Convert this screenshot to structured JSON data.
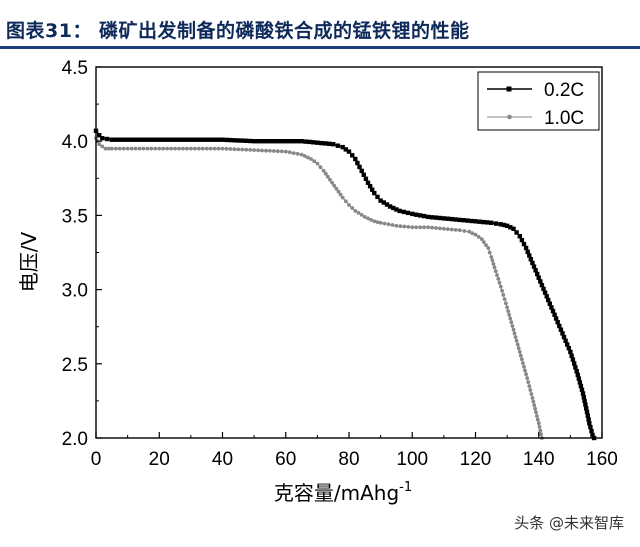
{
  "header": {
    "title": "图表31：   磷矿出发制备的磷酸铁合成的锰铁锂的性能"
  },
  "watermark": "头条 @未来智库",
  "chart_data": {
    "type": "line",
    "xlabel": "克容量/mAhg",
    "xlabel_sup": "-1",
    "ylabel": "电压/V",
    "xlim": [
      0,
      160
    ],
    "ylim": [
      2.0,
      4.5
    ],
    "xticks": [
      0,
      20,
      40,
      60,
      80,
      100,
      120,
      140,
      160
    ],
    "yticks": [
      2.0,
      2.5,
      3.0,
      3.5,
      4.0,
      4.5
    ],
    "xtick_labels": [
      "0",
      "20",
      "40",
      "60",
      "80",
      "100",
      "120",
      "140",
      "160"
    ],
    "ytick_labels": [
      "2.0",
      "2.5",
      "3.0",
      "3.5",
      "4.0",
      "4.5"
    ],
    "grid": false,
    "legend_position": "top-right",
    "series": [
      {
        "name": "0.2C",
        "color": "#000000",
        "marker": "square",
        "x": [
          0,
          1,
          2,
          5,
          10,
          20,
          30,
          40,
          50,
          60,
          65,
          70,
          75,
          78,
          80,
          82,
          84,
          86,
          88,
          90,
          93,
          96,
          100,
          105,
          110,
          115,
          120,
          125,
          128,
          130,
          132,
          134,
          136,
          138,
          140,
          142,
          144,
          146,
          148,
          150,
          152,
          154,
          155,
          156,
          157,
          157.5
        ],
        "y": [
          4.07,
          4.04,
          4.02,
          4.01,
          4.01,
          4.01,
          4.01,
          4.01,
          4.0,
          4.0,
          4.0,
          3.99,
          3.98,
          3.96,
          3.93,
          3.88,
          3.8,
          3.72,
          3.65,
          3.6,
          3.56,
          3.53,
          3.51,
          3.49,
          3.48,
          3.47,
          3.46,
          3.45,
          3.44,
          3.43,
          3.41,
          3.36,
          3.28,
          3.18,
          3.08,
          2.98,
          2.88,
          2.78,
          2.68,
          2.58,
          2.45,
          2.3,
          2.2,
          2.1,
          2.02,
          2.0
        ]
      },
      {
        "name": "1.0C",
        "color": "#888888",
        "marker": "circle",
        "x": [
          0,
          1,
          3,
          5,
          10,
          20,
          30,
          40,
          50,
          60,
          65,
          68,
          70,
          72,
          74,
          76,
          78,
          80,
          82,
          85,
          88,
          90,
          95,
          100,
          105,
          110,
          115,
          118,
          120,
          122,
          124,
          125,
          126,
          128,
          130,
          132,
          134,
          136,
          138,
          140,
          141
        ],
        "y": [
          4.02,
          3.98,
          3.95,
          3.95,
          3.95,
          3.95,
          3.95,
          3.95,
          3.94,
          3.93,
          3.91,
          3.88,
          3.85,
          3.8,
          3.74,
          3.68,
          3.62,
          3.57,
          3.53,
          3.49,
          3.46,
          3.45,
          3.43,
          3.42,
          3.42,
          3.41,
          3.4,
          3.39,
          3.37,
          3.34,
          3.28,
          3.22,
          3.15,
          3.02,
          2.88,
          2.73,
          2.58,
          2.43,
          2.27,
          2.1,
          2.0
        ]
      }
    ]
  }
}
